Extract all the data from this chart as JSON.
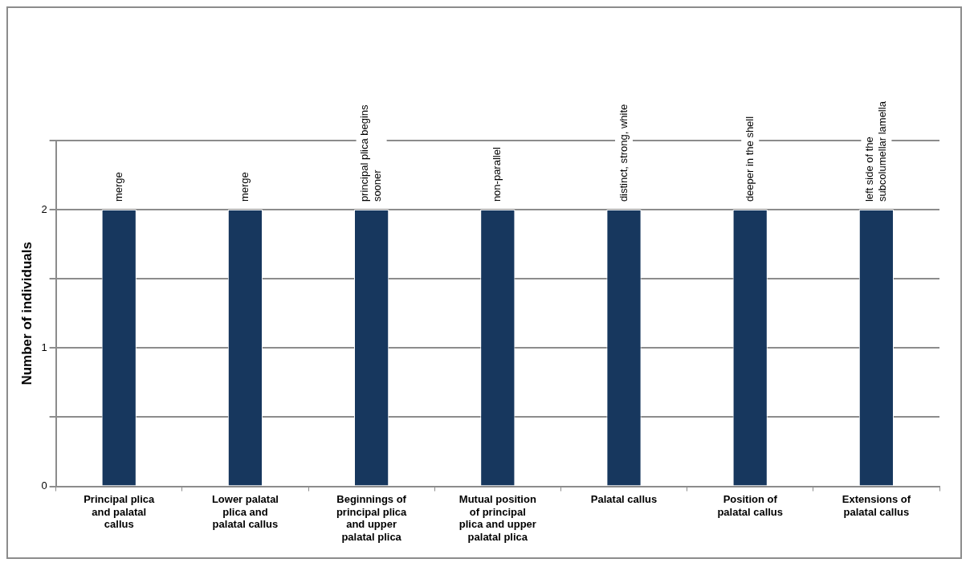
{
  "chart_data": {
    "type": "bar",
    "ylabel": "Number of individuals",
    "categories": [
      "Principal plica and palatal callus",
      "Lower palatal plica and palatal callus",
      "Beginnings of principal plica and upper palatal plica",
      "Mutual position of principal plica and upper palatal plica",
      "Palatal callus",
      "Position of palatal callus",
      "Extensions of palatal callus"
    ],
    "values": [
      2,
      2,
      2,
      2,
      2,
      2,
      2
    ],
    "value_labels": [
      "merge",
      "merge",
      "principal plica begins sooner",
      "non-parallel",
      "distinct, strong, white",
      "deeper in the shell",
      "left side of the subcolumellar lamella"
    ],
    "color": "#17375e",
    "ylim": [
      0,
      2.5
    ],
    "yticks": [
      0,
      {
        "value": 0.5,
        "label": null
      },
      1,
      {
        "value": 1.5,
        "label": null
      },
      2,
      {
        "value": 2.5,
        "label": null
      }
    ],
    "grid": "y",
    "legend": false
  }
}
